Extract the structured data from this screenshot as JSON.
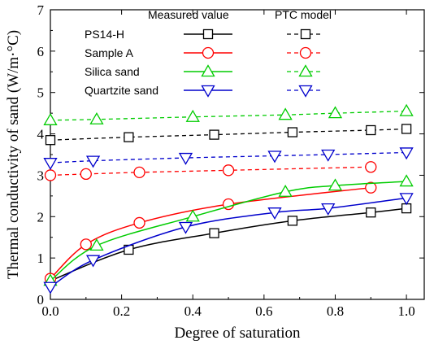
{
  "chart_data": {
    "type": "line",
    "xlabel": "Degree of saturation",
    "ylabel": "Thermal conductivity of sand (W/m·°C)",
    "xlim": [
      0.0,
      1.05
    ],
    "ylim": [
      0,
      7
    ],
    "xticks": [
      "0.0",
      "0.2",
      "0.4",
      "0.6",
      "0.8",
      "1.0"
    ],
    "xtick_values": [
      0.0,
      0.2,
      0.4,
      0.6,
      0.8,
      1.0
    ],
    "yticks": [
      "0",
      "1",
      "2",
      "3",
      "4",
      "5",
      "6",
      "7"
    ],
    "ytick_values": [
      0,
      1,
      2,
      3,
      4,
      5,
      6,
      7
    ],
    "legend": {
      "placement": "top",
      "col_headers": [
        "Measured value",
        "PTC model"
      ]
    },
    "series": [
      {
        "name": "PS14-H",
        "color": "#000000",
        "marker": "square",
        "measured": {
          "x": [
            0.0,
            0.22,
            0.46,
            0.68,
            0.9,
            1.0
          ],
          "y": [
            0.45,
            1.2,
            1.6,
            1.9,
            2.1,
            2.2
          ]
        },
        "model": {
          "x": [
            0.0,
            0.22,
            0.46,
            0.68,
            0.9,
            1.0
          ],
          "y": [
            3.85,
            3.92,
            3.98,
            4.04,
            4.09,
            4.12
          ]
        }
      },
      {
        "name": "Sample A",
        "color": "#ff0000",
        "marker": "circle",
        "measured": {
          "x": [
            0.0,
            0.1,
            0.25,
            0.5,
            0.9
          ],
          "y": [
            0.5,
            1.33,
            1.85,
            2.3,
            2.7
          ]
        },
        "model": {
          "x": [
            0.0,
            0.1,
            0.25,
            0.5,
            0.9
          ],
          "y": [
            3.0,
            3.03,
            3.07,
            3.12,
            3.2
          ]
        }
      },
      {
        "name": "Silica sand",
        "color": "#00cc00",
        "marker": "triangle-up",
        "measured": {
          "x": [
            0.0,
            0.13,
            0.4,
            0.66,
            0.8,
            1.0
          ],
          "y": [
            0.45,
            1.3,
            2.0,
            2.6,
            2.75,
            2.85
          ]
        },
        "model": {
          "x": [
            0.0,
            0.13,
            0.4,
            0.66,
            0.8,
            1.0
          ],
          "y": [
            4.33,
            4.35,
            4.41,
            4.46,
            4.5,
            4.55
          ]
        }
      },
      {
        "name": "Quartzite sand",
        "color": "#0000cc",
        "marker": "triangle-down",
        "measured": {
          "x": [
            0.0,
            0.12,
            0.38,
            0.63,
            0.78,
            1.0
          ],
          "y": [
            0.3,
            0.95,
            1.75,
            2.1,
            2.2,
            2.45
          ]
        },
        "model": {
          "x": [
            0.0,
            0.12,
            0.38,
            0.63,
            0.78,
            1.0
          ],
          "y": [
            3.3,
            3.35,
            3.42,
            3.47,
            3.5,
            3.55
          ]
        }
      }
    ]
  }
}
